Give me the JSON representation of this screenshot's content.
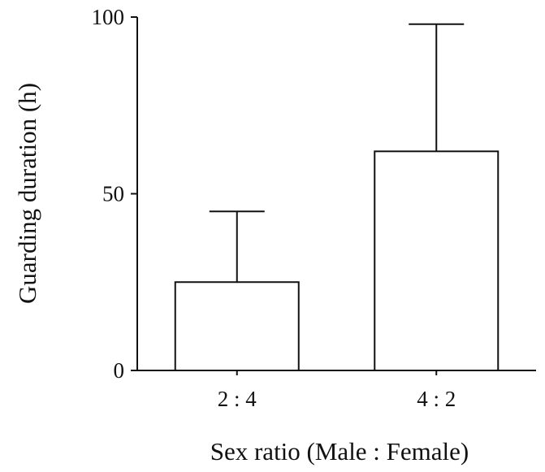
{
  "chart_data": {
    "type": "bar",
    "categories": [
      "2 : 4",
      "4 : 2"
    ],
    "values": [
      25,
      62
    ],
    "error_upper": [
      45,
      98
    ],
    "xlabel": "Sex ratio (Male : Female)",
    "ylabel": "Guarding duration (h)",
    "ylim": [
      0,
      100
    ],
    "yticks": [
      0,
      50,
      100
    ],
    "grid": false,
    "legend": "none",
    "colors": {
      "bar_fill": "#ffffff",
      "stroke": "#111111"
    }
  }
}
